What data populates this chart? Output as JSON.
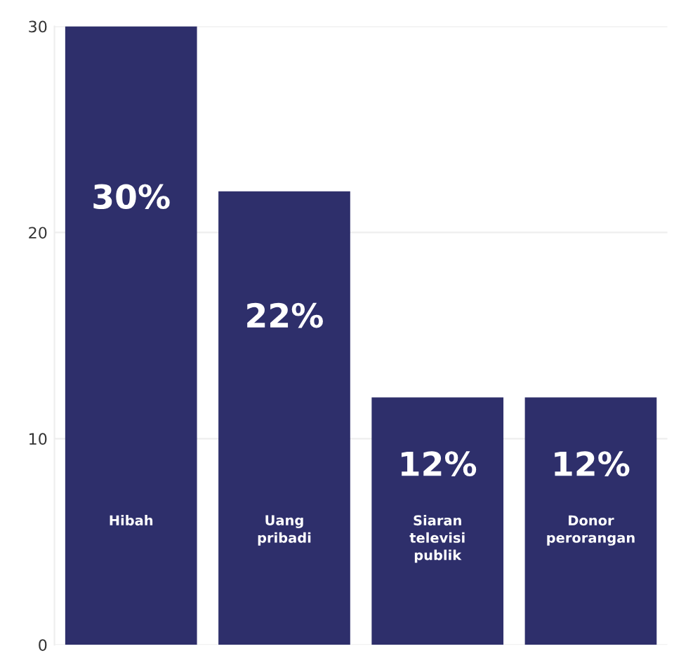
{
  "chart_data": {
    "type": "bar",
    "categories": [
      "Hibah",
      "Uang\npribadi",
      "Siaran\ntelevisi\npublik",
      "Donor\nperorangan"
    ],
    "values": [
      30,
      22,
      12,
      12
    ],
    "value_labels": [
      "30%",
      "22%",
      "12%",
      "12%"
    ],
    "color": "#2e2f6b",
    "ylim": [
      0,
      30
    ],
    "yticks": [
      0,
      10,
      20,
      30
    ],
    "grid": "y"
  }
}
